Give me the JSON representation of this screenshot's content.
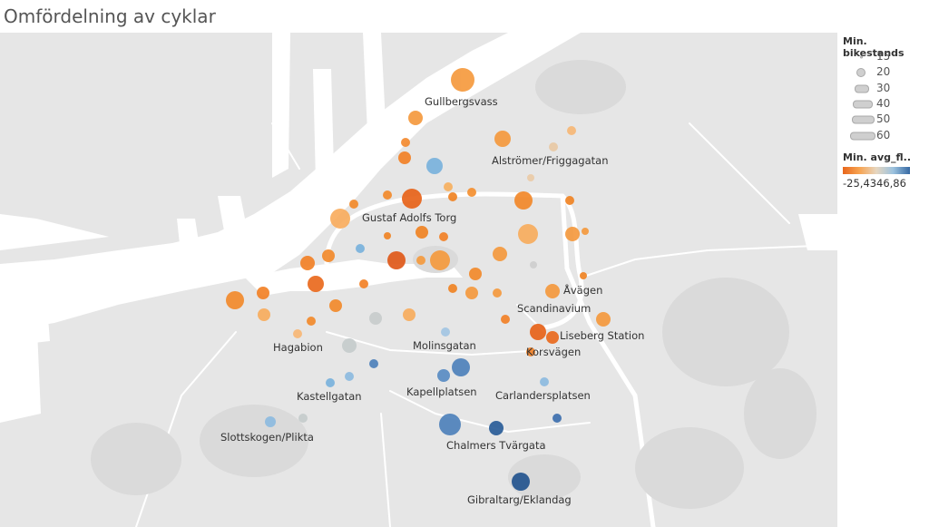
{
  "title": "Omfördelning av cyklar",
  "legend": {
    "size_title": "Min. bikestands",
    "size_items": [
      "15",
      "20",
      "30",
      "40",
      "50",
      "60"
    ],
    "color_title": "Min. avg_fl..",
    "color_min": "-25,43",
    "color_max": "46,86",
    "colors": {
      "low": "#e8671c",
      "mid_low": "#f7a452",
      "mid": "#d8d8d8",
      "mid_high": "#8ebbe0",
      "high": "#2a5d98"
    }
  },
  "map": {
    "labels": [
      "Gullbergsvass",
      "Alströmer/Friggagatan",
      "Gustaf Adolfs Torg",
      "Åvägen",
      "Scandinavium",
      "Liseberg Station",
      "Korsvägen",
      "Hagabion",
      "Molinsgatan",
      "Kastellgatan",
      "Kapellplatsen",
      "Carlandersplatsen",
      "Slottskogen/Plikta",
      "Chalmers Tvärgata",
      "Gibraltarg/Eklandag"
    ]
  }
}
